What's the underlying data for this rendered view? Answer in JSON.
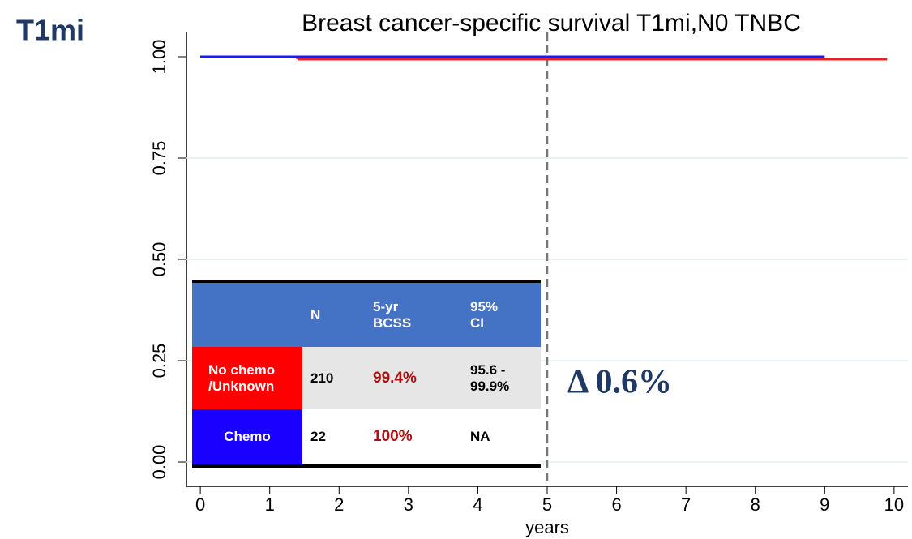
{
  "label": "T1mi",
  "chart_data": {
    "type": "line",
    "step": true,
    "title": "Breast cancer-specific survival T1mi,N0 TNBC",
    "xlabel": "years",
    "xlim": [
      -0.2,
      10.2
    ],
    "xticks": [
      0,
      1,
      2,
      3,
      4,
      5,
      6,
      7,
      8,
      9,
      10
    ],
    "ylim": [
      -0.06,
      1.06
    ],
    "yticks": [
      {
        "value": 0,
        "label": "0.00"
      },
      {
        "value": 0.25,
        "label": "0.25"
      },
      {
        "value": 0.5,
        "label": "0.50"
      },
      {
        "value": 0.75,
        "label": "0.75"
      },
      {
        "value": 1,
        "label": "1.00"
      }
    ],
    "grid": true,
    "reference_x": 5,
    "annotation": "Δ 0.6%",
    "series": [
      {
        "name": "No chemo /Unknown",
        "color": "#e8202a",
        "x": [
          0,
          1.4,
          9.9
        ],
        "values": [
          1,
          0.994,
          0.994
        ]
      },
      {
        "name": "Chemo",
        "color": "#1a1aff",
        "x": [
          0,
          9
        ],
        "values": [
          1,
          1
        ]
      }
    ]
  },
  "table": {
    "header": [
      "N",
      [
        "5-yr",
        "BCSS"
      ],
      [
        "95%",
        "CI"
      ]
    ],
    "rows": [
      {
        "label": [
          "No chemo",
          "/Unknown"
        ],
        "n": "210",
        "bcss": "99.4%",
        "ci": [
          "95.6 -",
          "99.9%"
        ]
      },
      {
        "label": [
          "Chemo"
        ],
        "n": "22",
        "bcss": "100%",
        "ci": [
          "NA"
        ]
      }
    ]
  }
}
